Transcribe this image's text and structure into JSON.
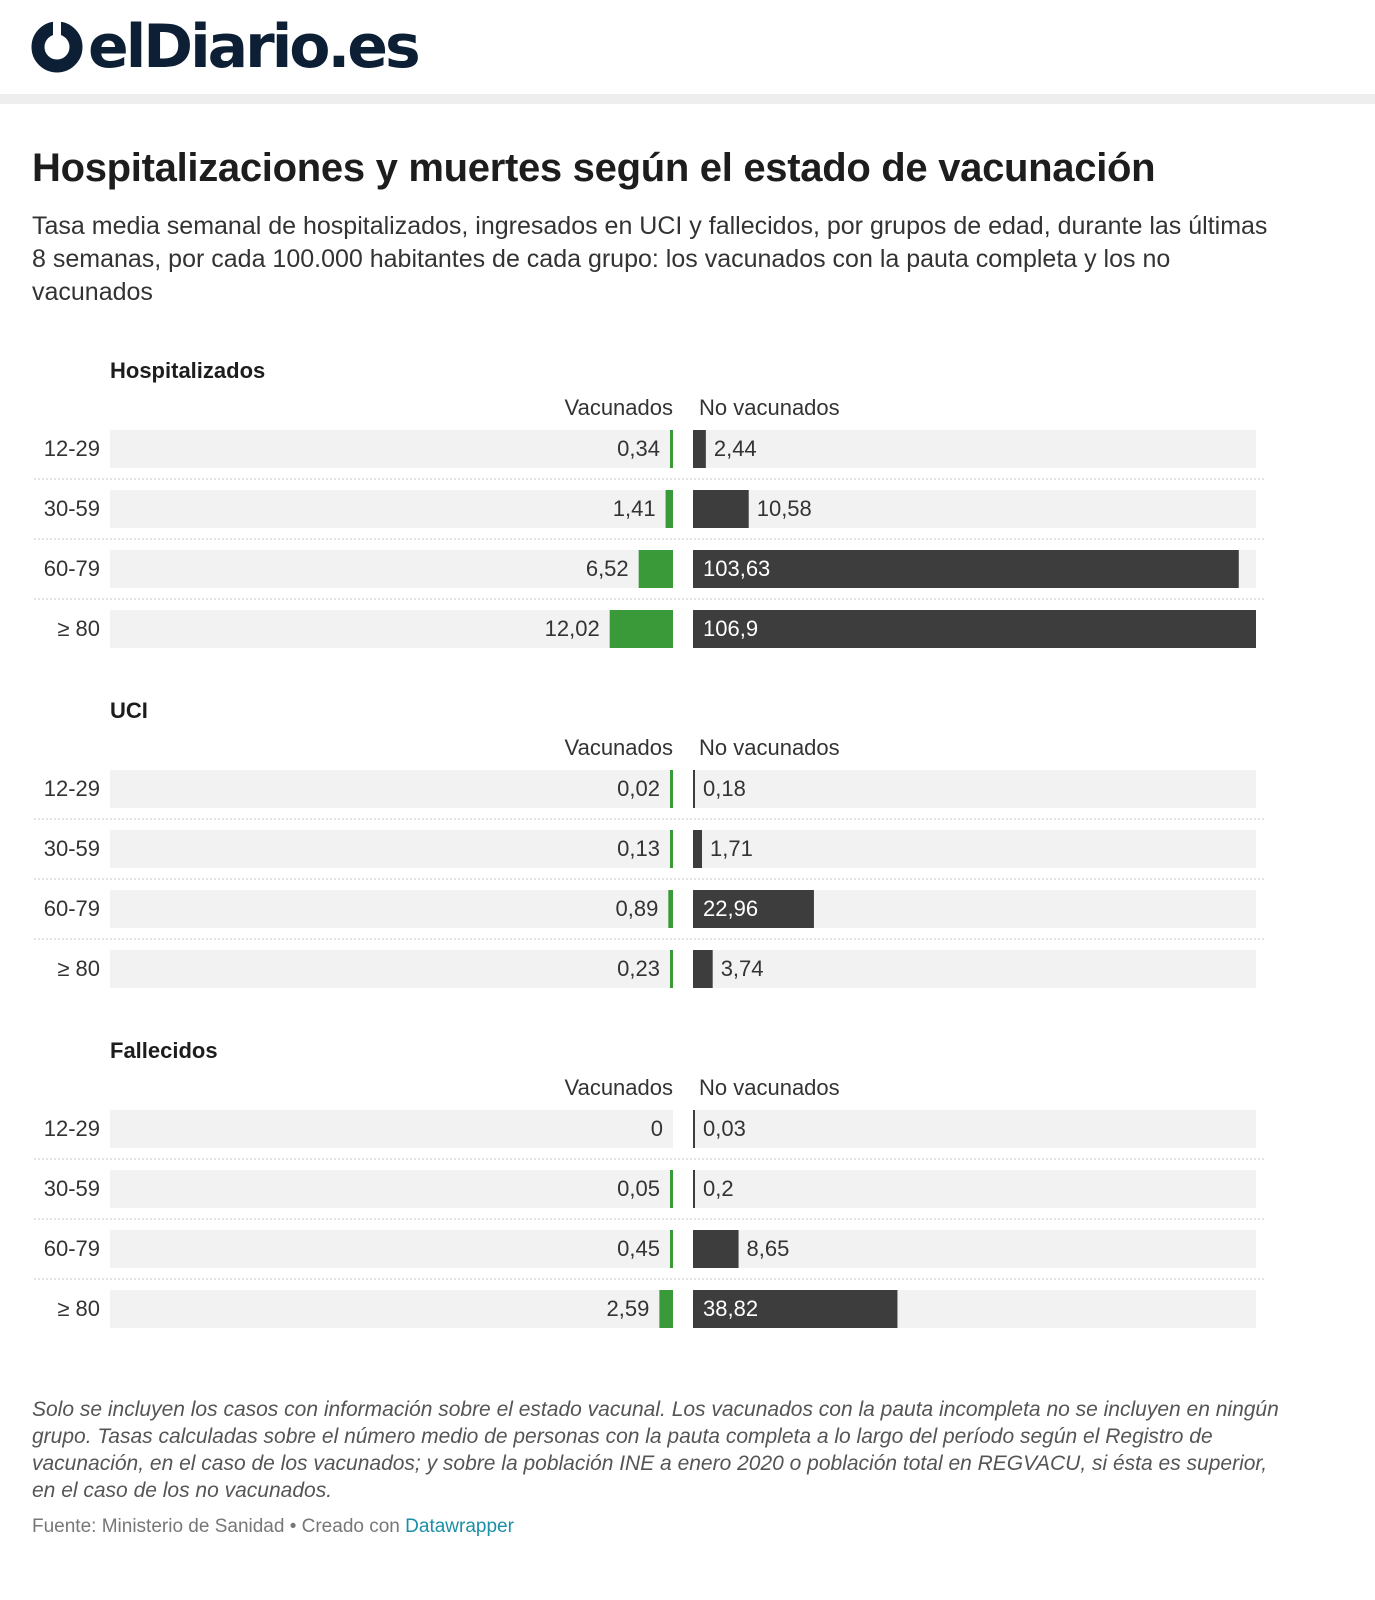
{
  "brand": {
    "name": "elDiario.es",
    "color": "#0d1f35"
  },
  "header": {
    "title": "Hospitalizaciones y muertes según el estado de vacunación",
    "subtitle": "Tasa media semanal de hospitalizados, ingresados en UCI y fallecidos, por grupos de edad, durante las últimas 8 semanas, por cada 100.000 habitantes de cada grupo: los vacunados con la pauta completa y los no vacunados"
  },
  "colors": {
    "vaccinated": "#3a9a3a",
    "unvaccinated": "#3d3d3d",
    "track": "#f2f2f2",
    "divider": "#d4d4d4"
  },
  "chart_data": [
    {
      "type": "bar",
      "title": "Hospitalizados",
      "left_label": "Vacunados",
      "right_label": "No vacunados",
      "categories": [
        "12-29",
        "30-59",
        "60-79",
        "≥ 80"
      ],
      "xlim": [
        0,
        106.9
      ],
      "series": [
        {
          "name": "Vacunados",
          "values": [
            0.34,
            1.41,
            6.52,
            12.02
          ],
          "labels": [
            "0,34",
            "1,41",
            "6,52",
            "12,02"
          ]
        },
        {
          "name": "No vacunados",
          "values": [
            2.44,
            10.58,
            103.63,
            106.9
          ],
          "labels": [
            "2,44",
            "10,58",
            "103,63",
            "106,9"
          ]
        }
      ]
    },
    {
      "type": "bar",
      "title": "UCI",
      "left_label": "Vacunados",
      "right_label": "No vacunados",
      "categories": [
        "12-29",
        "30-59",
        "60-79",
        "≥ 80"
      ],
      "xlim": [
        0,
        106.9
      ],
      "series": [
        {
          "name": "Vacunados",
          "values": [
            0.02,
            0.13,
            0.89,
            0.23
          ],
          "labels": [
            "0,02",
            "0,13",
            "0,89",
            "0,23"
          ]
        },
        {
          "name": "No vacunados",
          "values": [
            0.18,
            1.71,
            22.96,
            3.74
          ],
          "labels": [
            "0,18",
            "1,71",
            "22,96",
            "3,74"
          ]
        }
      ]
    },
    {
      "type": "bar",
      "title": "Fallecidos",
      "left_label": "Vacunados",
      "right_label": "No vacunados",
      "categories": [
        "12-29",
        "30-59",
        "60-79",
        "≥ 80"
      ],
      "xlim": [
        0,
        106.9
      ],
      "series": [
        {
          "name": "Vacunados",
          "values": [
            0,
            0.05,
            0.45,
            2.59
          ],
          "labels": [
            "0",
            "0,05",
            "0,45",
            "2,59"
          ]
        },
        {
          "name": "No vacunados",
          "values": [
            0.03,
            0.2,
            8.65,
            38.82
          ],
          "labels": [
            "0,03",
            "0,2",
            "8,65",
            "38,82"
          ]
        }
      ]
    }
  ],
  "footer": {
    "notes": "Solo se incluyen los casos con información sobre el estado vacunal. Los vacunados con la pauta incompleta no se incluyen en ningún grupo. Tasas calculadas sobre el número medio de personas con la pauta completa a lo largo del período según el Registro de vacunación, en el caso de los vacunados; y sobre la población INE a enero 2020 o población total en REGVACU, si ésta es superior, en el caso de los no vacunados.",
    "source_text": "Fuente: Ministerio de Sanidad • Creado con",
    "source_link": "Datawrapper"
  }
}
